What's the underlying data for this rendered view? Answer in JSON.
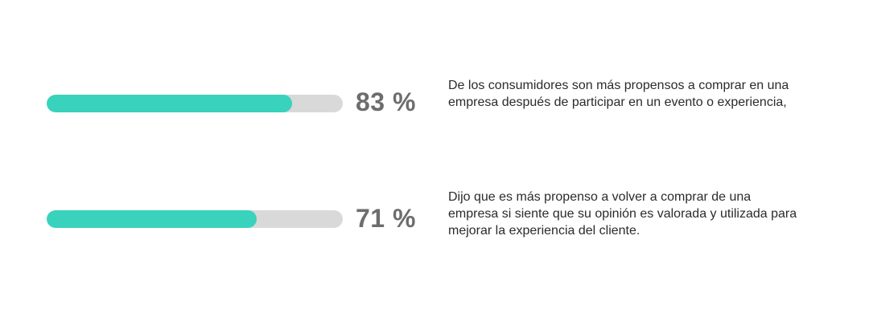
{
  "stats": [
    {
      "value": 83,
      "percent_label": "83 %",
      "description": "De los consumidores son más propensos a comprar en una empresa después de participar en un evento o experiencia,"
    },
    {
      "value": 71,
      "percent_label": "71 %",
      "description": "Dijo que es más propenso a volver a comprar de una empresa si siente que su opinión es valorada y utilizada para mejorar la experiencia del cliente."
    }
  ],
  "colors": {
    "bar_fill": "#39d2bd",
    "bar_track": "#d9d9d9",
    "percent_text": "#6d6d6d",
    "body_text": "#2b2b2b",
    "background": "#ffffff"
  },
  "chart_data": {
    "type": "bar",
    "orientation": "horizontal",
    "categories": [
      "De los consumidores son más propensos a comprar en una empresa después de participar en un evento o experiencia,",
      "Dijo que es más propenso a volver a comprar de una empresa si siente que su opinión es valorada y utilizada para mejorar la experiencia del cliente."
    ],
    "values": [
      83,
      71
    ],
    "value_labels": [
      "83 %",
      "71 %"
    ],
    "xlim": [
      0,
      100
    ],
    "title": "",
    "legend_position": "none",
    "grid": false
  }
}
